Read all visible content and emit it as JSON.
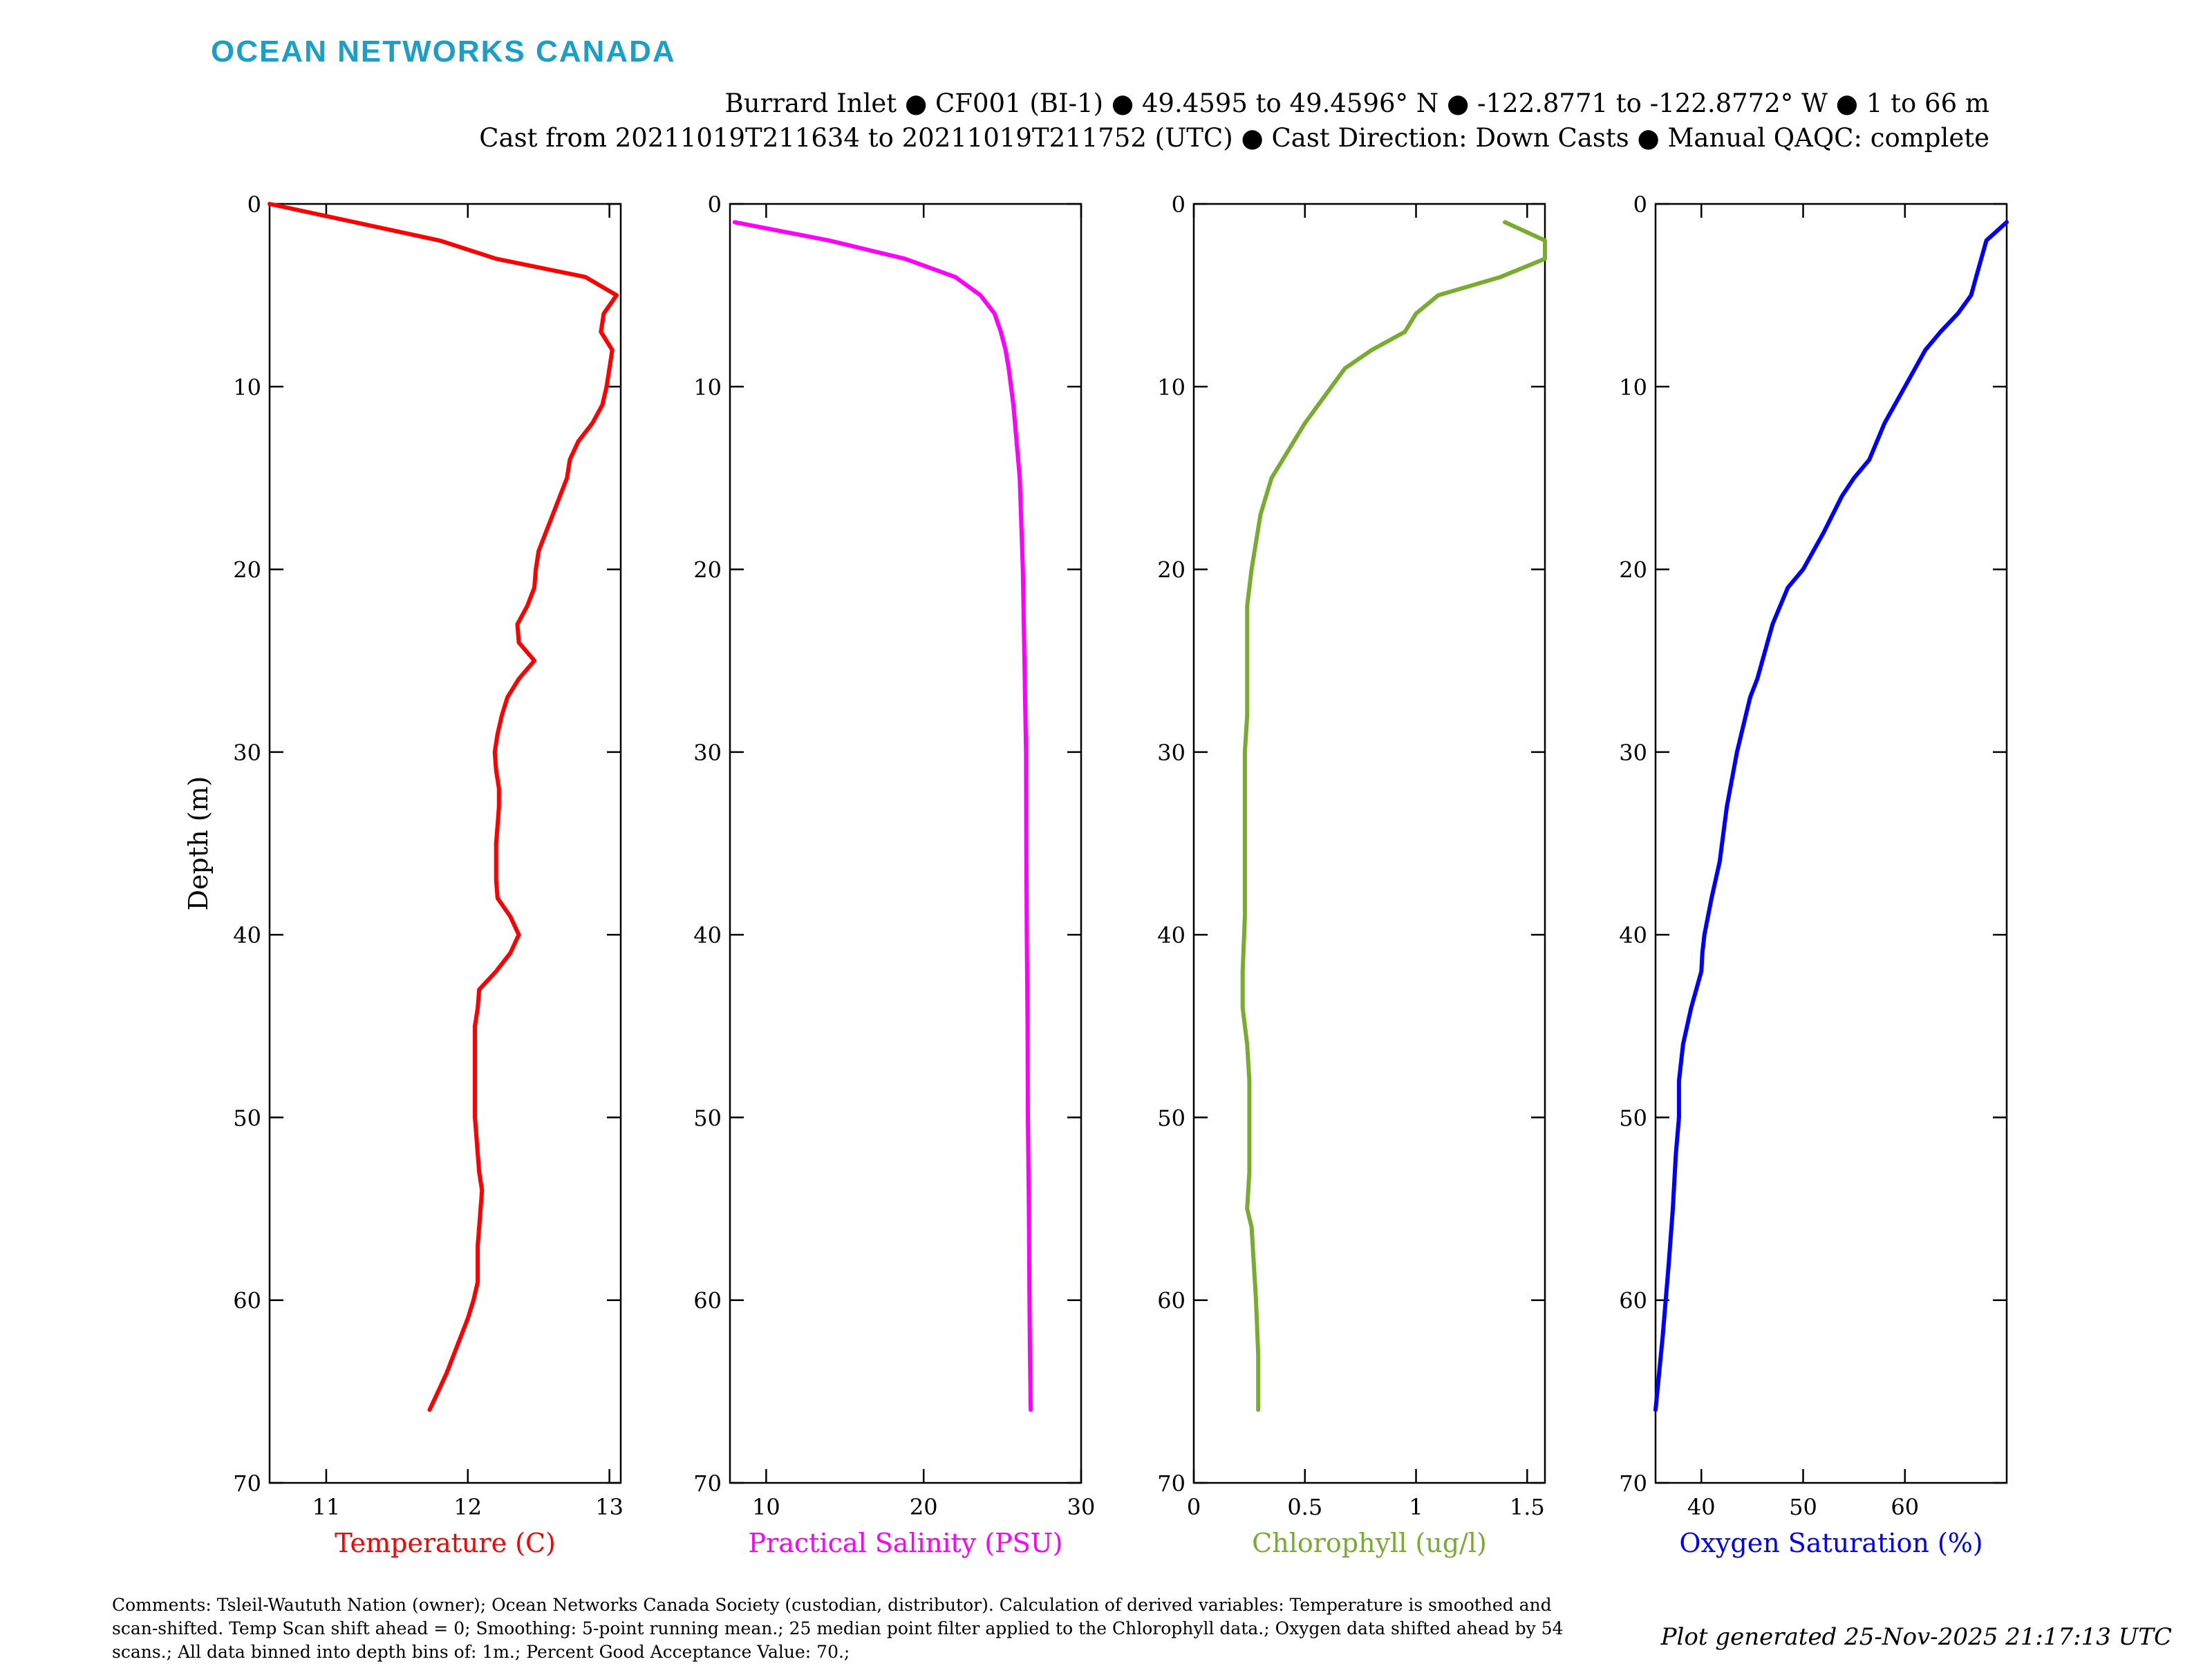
{
  "brand": "OCEAN NETWORKS CANADA",
  "header": {
    "line1": "Burrard Inlet ● CF001 (BI-1) ● 49.4595 to 49.4596° N ● -122.8771 to -122.8772° W ● 1 to 66 m",
    "line2": "Cast from 20211019T211634 to 20211019T211752 (UTC) ● Cast Direction: Down Casts ● Manual QAQC: complete"
  },
  "footer": {
    "comments": "Comments: Tsleil-Waututh Nation (owner); Ocean Networks Canada Society (custodian, distributor). Calculation of derived variables: Temperature is smoothed and scan-shifted. Temp Scan shift ahead = 0; Smoothing: 5-point running mean.; 25 median point filter applied to the Chlorophyll data.; Oxygen data shifted ahead by 54 scans.; All data binned into depth bins of: 1m.; Percent Good Acceptance Value: 70.;",
    "generated": "Plot generated 25-Nov-2025 21:17:13 UTC"
  },
  "chart_data": [
    {
      "type": "line",
      "xlabel": "Temperature (C)",
      "ylabel": "Depth (m)",
      "color": "#ff0000",
      "xlim": [
        10.6,
        13.08
      ],
      "ylim": [
        0,
        70
      ],
      "y_reversed": true,
      "xticks": [
        11,
        12,
        13
      ],
      "yticks": [
        0,
        10,
        20,
        30,
        40,
        50,
        60,
        70
      ],
      "series": [
        {
          "x": [
            10.6,
            11.2,
            11.8,
            12.2,
            12.83,
            13.05,
            12.96,
            12.94,
            13.02,
            13.0,
            12.98,
            12.95,
            12.88,
            12.78,
            12.72,
            12.7,
            12.65,
            12.6,
            12.55,
            12.5,
            12.48,
            12.47,
            12.42,
            12.35,
            12.36,
            12.47,
            12.36,
            12.28,
            12.24,
            12.21,
            12.19,
            12.2,
            12.22,
            12.22,
            12.21,
            12.2,
            12.2,
            12.2,
            12.21,
            12.3,
            12.36,
            12.3,
            12.2,
            12.08,
            12.07,
            12.05,
            12.05,
            12.05,
            12.05,
            12.05,
            12.05,
            12.06,
            12.07,
            12.08,
            12.1,
            12.09,
            12.08,
            12.07,
            12.07,
            12.07,
            12.04,
            12.0,
            11.95,
            11.9,
            11.85,
            11.79,
            11.73
          ],
          "y": [
            0,
            1,
            2,
            3,
            4,
            5,
            6,
            7,
            8,
            9,
            10,
            11,
            12,
            13,
            14,
            15,
            16,
            17,
            18,
            19,
            20,
            21,
            22,
            23,
            24,
            25,
            26,
            27,
            28,
            29,
            30,
            31,
            32,
            33,
            34,
            35,
            36,
            37,
            38,
            39,
            40,
            41,
            42,
            43,
            44,
            45,
            46,
            47,
            48,
            49,
            50,
            51,
            52,
            53,
            54,
            55,
            56,
            57,
            58,
            59,
            60,
            61,
            62,
            63,
            64,
            65,
            66
          ]
        }
      ]
    },
    {
      "type": "line",
      "xlabel": "Practical Salinity (PSU)",
      "ylabel": "",
      "color": "#ff00ff",
      "xlim": [
        7.7,
        30
      ],
      "ylim": [
        0,
        70
      ],
      "y_reversed": true,
      "xticks": [
        10,
        20,
        30
      ],
      "yticks": [
        0,
        10,
        20,
        30,
        40,
        50,
        60,
        70
      ],
      "series": [
        {
          "x": [
            8.0,
            14.0,
            18.8,
            22.0,
            23.6,
            24.5,
            24.9,
            25.2,
            25.4,
            25.7,
            25.9,
            26.1,
            26.3,
            26.4,
            26.5,
            26.52,
            26.55,
            26.6,
            26.62,
            26.68,
            26.72,
            26.75,
            26.8
          ],
          "y": [
            1,
            2,
            3,
            4,
            5,
            6,
            7,
            8,
            9,
            11,
            13,
            15,
            20,
            25,
            30,
            35,
            40,
            45,
            50,
            55,
            60,
            63,
            66
          ]
        }
      ]
    },
    {
      "type": "line",
      "xlabel": "Chlorophyll (ug/l)",
      "ylabel": "",
      "color": "#77ac30",
      "xlim": [
        0,
        1.58
      ],
      "ylim": [
        0,
        70
      ],
      "y_reversed": true,
      "xticks": [
        0,
        0.5,
        1,
        1.5
      ],
      "yticks": [
        0,
        10,
        20,
        30,
        40,
        50,
        60,
        70
      ],
      "series": [
        {
          "x": [
            1.4,
            1.58,
            1.58,
            1.38,
            1.1,
            1.0,
            0.95,
            0.8,
            0.68,
            0.62,
            0.5,
            0.4,
            0.35,
            0.3,
            0.26,
            0.24,
            0.24,
            0.24,
            0.23,
            0.23,
            0.23,
            0.23,
            0.22,
            0.22,
            0.24,
            0.25,
            0.25,
            0.25,
            0.24,
            0.26,
            0.27,
            0.28,
            0.29,
            0.29
          ],
          "y": [
            1,
            2,
            3,
            4,
            5,
            6,
            7,
            8,
            9,
            10,
            12,
            14,
            15,
            17,
            20,
            22,
            25,
            28,
            30,
            33,
            36,
            39,
            42,
            44,
            46,
            48,
            50,
            53,
            55,
            56,
            58,
            60,
            63,
            66
          ]
        }
      ]
    },
    {
      "type": "line",
      "xlabel": "Oxygen Saturation (%)",
      "ylabel": "",
      "color": "#0000ff",
      "xlim": [
        35.5,
        70
      ],
      "ylim": [
        0,
        70
      ],
      "y_reversed": true,
      "xticks": [
        40,
        50,
        60
      ],
      "yticks": [
        0,
        10,
        20,
        30,
        40,
        50,
        60,
        70
      ],
      "series": [
        {
          "x": [
            70.0,
            68.0,
            67.0,
            66.5,
            65.2,
            63.5,
            62.0,
            60.0,
            58.0,
            56.5,
            55.0,
            53.8,
            52.0,
            50.0,
            48.5,
            47.0,
            45.5,
            44.8,
            43.5,
            42.5,
            41.8,
            41.0,
            40.3,
            40.1,
            40.0,
            39.0,
            38.2,
            37.8,
            37.8,
            37.5,
            37.2,
            36.8,
            36.2,
            35.5
          ],
          "y": [
            1,
            2,
            4,
            5,
            6,
            7,
            8,
            10,
            12,
            14,
            15,
            16,
            18,
            20,
            21,
            23,
            26,
            27,
            30,
            33,
            36,
            38,
            40,
            41,
            42,
            44,
            46,
            48,
            50,
            52,
            55,
            58,
            62,
            66
          ]
        }
      ]
    }
  ]
}
